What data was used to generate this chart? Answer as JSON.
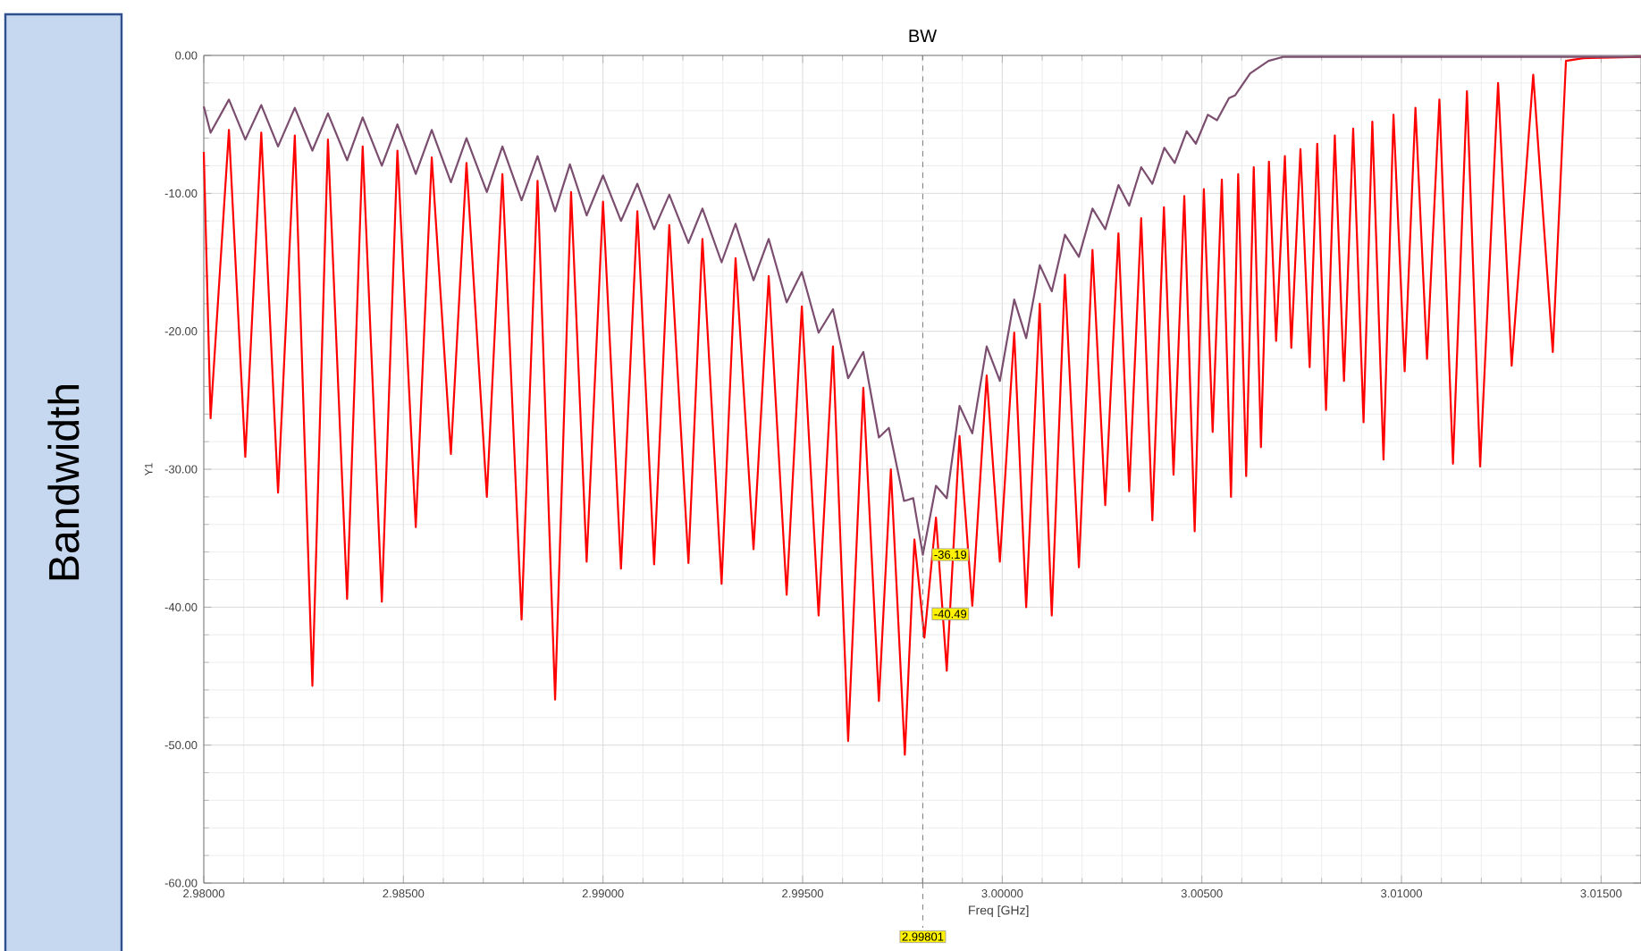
{
  "chart_data": {
    "type": "line",
    "title": "BW",
    "xlabel": "Freq [GHz]",
    "ylabel": "Y1",
    "xlim": [
      2.98,
      3.016
    ],
    "ylim": [
      -60,
      0
    ],
    "xticks": [
      {
        "value": 2.98,
        "label": "2.98000"
      },
      {
        "value": 2.985,
        "label": "2.98500"
      },
      {
        "value": 2.99,
        "label": "2.99000"
      },
      {
        "value": 2.995,
        "label": "2.99500"
      },
      {
        "value": 3.0,
        "label": "3.00000"
      },
      {
        "value": 3.005,
        "label": "3.00500"
      },
      {
        "value": 3.01,
        "label": "3.01000"
      },
      {
        "value": 3.015,
        "label": "3.01500"
      }
    ],
    "yticks": [
      {
        "value": 0,
        "label": "0.00"
      },
      {
        "value": -10,
        "label": "-10.00"
      },
      {
        "value": -20,
        "label": "-20.00"
      },
      {
        "value": -30,
        "label": "-30.00"
      },
      {
        "value": -40,
        "label": "-40.00"
      },
      {
        "value": -50,
        "label": "-50.00"
      },
      {
        "value": -60,
        "label": "-60.00"
      }
    ],
    "grid": true,
    "series": [
      {
        "color": "#ff0000",
        "x": [
          2.98,
          2.98017,
          2.98063,
          2.98104,
          2.98144,
          2.98186,
          2.98228,
          2.98272,
          2.98311,
          2.98359,
          2.98398,
          2.98446,
          2.98485,
          2.98531,
          2.98571,
          2.98619,
          2.98658,
          2.98709,
          2.98748,
          2.98796,
          2.98836,
          2.9888,
          2.9892,
          2.98959,
          2.99,
          2.99045,
          2.99086,
          2.99128,
          2.99166,
          2.99214,
          2.99249,
          2.99297,
          2.99332,
          2.99377,
          2.99415,
          2.9946,
          2.99498,
          2.9954,
          2.99576,
          2.99614,
          2.99652,
          2.99691,
          2.99721,
          2.99756,
          2.9978,
          2.99805,
          2.99834,
          2.99861,
          2.99893,
          2.99925,
          2.99961,
          2.99994,
          3.0003,
          3.0006,
          3.00094,
          3.00124,
          3.00157,
          3.00192,
          3.00226,
          3.00258,
          3.00291,
          3.00318,
          3.00348,
          3.00376,
          3.00405,
          3.00429,
          3.00456,
          3.00482,
          3.00505,
          3.00527,
          3.0055,
          3.00573,
          3.00591,
          3.00611,
          3.0063,
          3.00648,
          3.00668,
          3.00686,
          3.00708,
          3.00724,
          3.00747,
          3.0077,
          3.00789,
          3.00811,
          3.00833,
          3.00856,
          3.00879,
          3.00905,
          3.00927,
          3.00955,
          3.0098,
          3.01008,
          3.01035,
          3.01064,
          3.01095,
          3.01129,
          3.01164,
          3.01197,
          3.01242,
          3.01276,
          3.0133,
          3.01379,
          3.01412,
          3.01455,
          3.016
        ],
        "values": [
          -7.0,
          -26.3,
          -5.4,
          -29.1,
          -5.6,
          -31.7,
          -5.8,
          -45.7,
          -6.1,
          -39.4,
          -6.6,
          -39.6,
          -6.9,
          -34.2,
          -7.4,
          -28.9,
          -7.8,
          -32.0,
          -8.6,
          -40.9,
          -9.1,
          -46.7,
          -9.9,
          -36.7,
          -10.6,
          -37.2,
          -11.3,
          -36.9,
          -12.3,
          -36.8,
          -13.3,
          -38.3,
          -14.7,
          -35.8,
          -16.0,
          -39.1,
          -18.2,
          -40.6,
          -21.1,
          -49.7,
          -24.1,
          -46.8,
          -30.0,
          -50.7,
          -35.1,
          -42.2,
          -33.5,
          -44.6,
          -27.6,
          -39.9,
          -23.2,
          -36.7,
          -20.1,
          -40.0,
          -18.0,
          -40.6,
          -15.9,
          -37.1,
          -14.1,
          -32.6,
          -12.9,
          -31.6,
          -11.8,
          -33.7,
          -11.0,
          -30.4,
          -10.2,
          -34.5,
          -9.7,
          -27.3,
          -9.0,
          -32.0,
          -8.6,
          -30.5,
          -8.1,
          -28.4,
          -7.7,
          -20.7,
          -7.3,
          -21.2,
          -6.8,
          -22.6,
          -6.4,
          -25.7,
          -5.8,
          -23.6,
          -5.3,
          -26.6,
          -4.8,
          -29.3,
          -4.3,
          -22.9,
          -3.8,
          -22.0,
          -3.2,
          -29.6,
          -2.6,
          -29.8,
          -2.0,
          -22.5,
          -1.4,
          -21.5,
          -0.4,
          -0.2,
          -0.1
        ]
      },
      {
        "color": "#7b4d6e",
        "x": [
          2.98,
          2.98017,
          2.98063,
          2.98104,
          2.98144,
          2.98186,
          2.98228,
          2.98272,
          2.98311,
          2.98359,
          2.98398,
          2.98446,
          2.98485,
          2.98531,
          2.98571,
          2.98619,
          2.98658,
          2.98709,
          2.98748,
          2.98796,
          2.98836,
          2.9888,
          2.98917,
          2.98959,
          2.99,
          2.99045,
          2.99086,
          2.99128,
          2.99166,
          2.99214,
          2.99249,
          2.99297,
          2.99332,
          2.99377,
          2.99415,
          2.9946,
          2.99498,
          2.9954,
          2.99576,
          2.99614,
          2.99652,
          2.99691,
          2.99716,
          2.99754,
          2.99777,
          2.99801,
          2.99834,
          2.99861,
          2.99893,
          2.99925,
          2.99961,
          2.99994,
          3.0003,
          3.0006,
          3.00094,
          3.00124,
          3.00157,
          3.00192,
          3.00226,
          3.00258,
          3.00291,
          3.00318,
          3.00348,
          3.00376,
          3.00406,
          3.00432,
          3.00462,
          3.00485,
          3.00515,
          3.00538,
          3.00568,
          3.00583,
          3.00621,
          3.00667,
          3.00705,
          3.016
        ],
        "values": [
          -3.7,
          -5.6,
          -3.2,
          -6.1,
          -3.6,
          -6.6,
          -3.8,
          -6.9,
          -4.2,
          -7.6,
          -4.5,
          -8.0,
          -5.0,
          -8.6,
          -5.4,
          -9.2,
          -6.0,
          -9.9,
          -6.6,
          -10.5,
          -7.3,
          -11.3,
          -7.9,
          -11.6,
          -8.7,
          -12.0,
          -9.3,
          -12.6,
          -10.1,
          -13.6,
          -11.1,
          -15.0,
          -12.2,
          -16.3,
          -13.3,
          -17.9,
          -15.7,
          -20.1,
          -18.4,
          -23.4,
          -21.5,
          -27.7,
          -27.0,
          -32.3,
          -32.1,
          -36.2,
          -31.2,
          -32.1,
          -25.4,
          -27.4,
          -21.1,
          -23.6,
          -17.7,
          -20.5,
          -15.2,
          -17.1,
          -13.0,
          -14.6,
          -11.1,
          -12.6,
          -9.4,
          -10.9,
          -8.1,
          -9.3,
          -6.7,
          -7.8,
          -5.5,
          -6.4,
          -4.3,
          -4.7,
          -3.1,
          -2.9,
          -1.3,
          -0.4,
          -0.1,
          -0.1
        ]
      }
    ],
    "ref_lines": [
      {
        "axis": "x",
        "value": 2.99801,
        "label": "2.99801",
        "line_style": "dashed",
        "color": "#808080"
      }
    ],
    "annotations": [
      {
        "text": "-36.19",
        "x": 2.99801,
        "y": -36.19
      },
      {
        "text": "-40.49",
        "x": 2.99801,
        "y": -40.49
      },
      "Bandwidth"
    ]
  }
}
